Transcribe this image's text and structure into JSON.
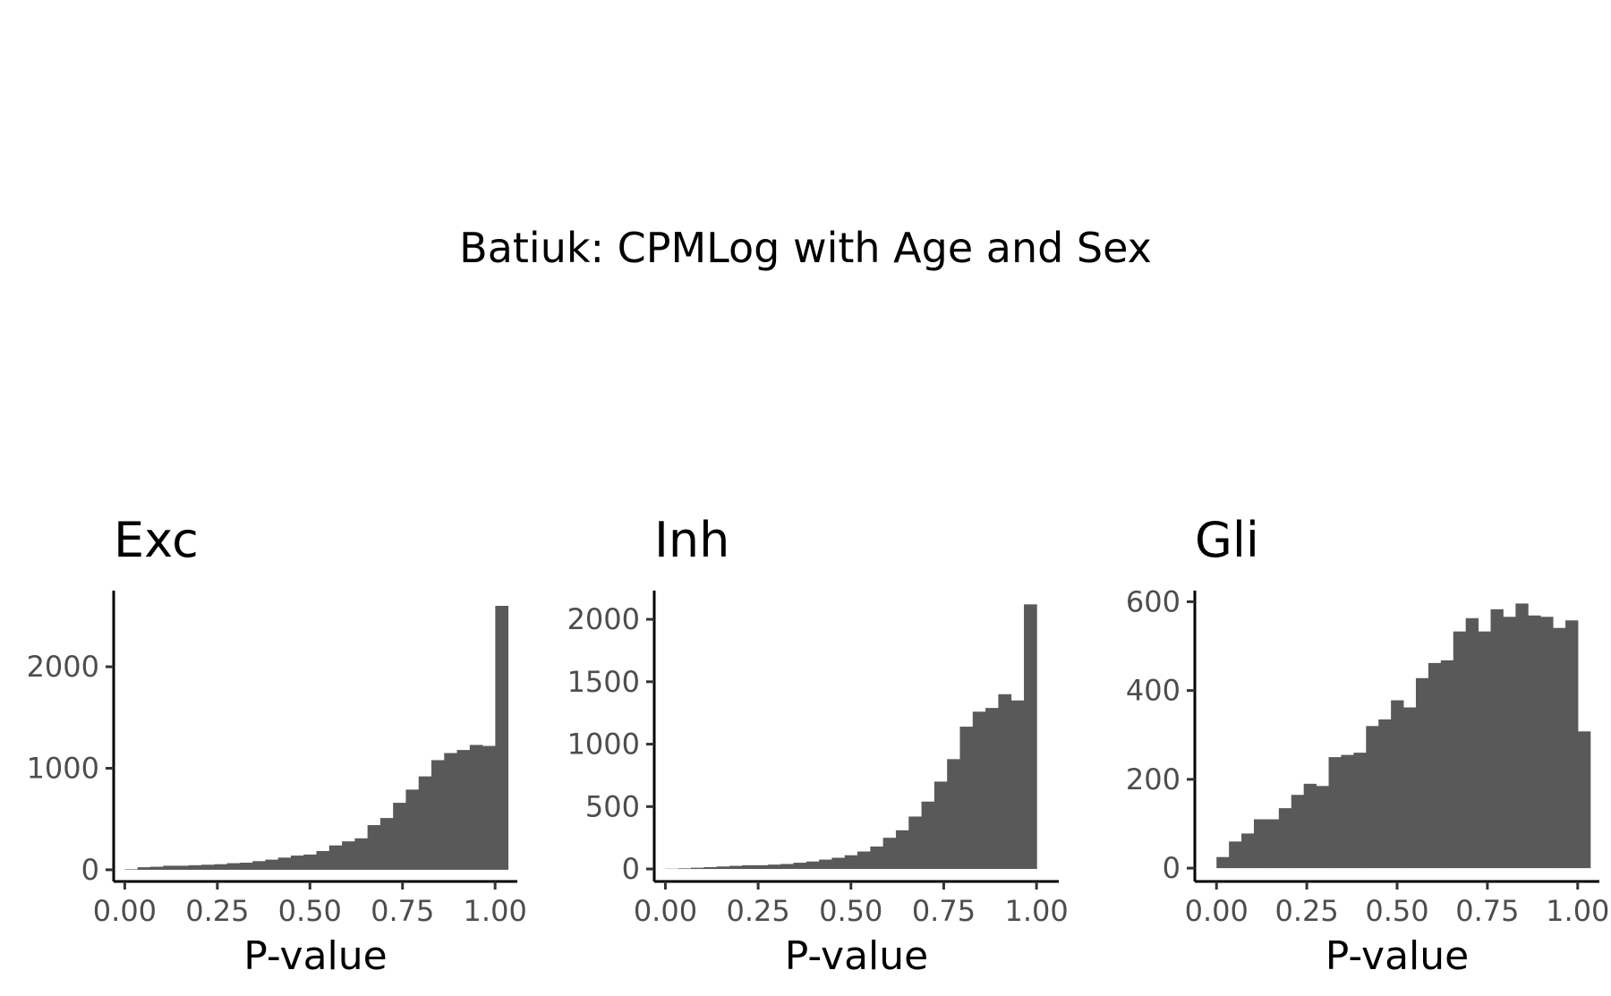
{
  "title": "Batiuk: CPMLog with Age and Sex",
  "chart_data": [
    {
      "type": "bar",
      "panel": "Exc",
      "title": "Exc",
      "xlabel": "P-value",
      "ylabel": "",
      "xlim": [
        -0.03,
        1.06
      ],
      "ylim": [
        -115,
        2750
      ],
      "xticks": [
        "0.00",
        "0.25",
        "0.50",
        "0.75",
        "1.00"
      ],
      "yticks": [
        "0",
        "1000",
        "2000"
      ],
      "bin_width": 0.0345,
      "values": [
        5,
        25,
        30,
        40,
        40,
        45,
        50,
        55,
        65,
        70,
        85,
        100,
        120,
        140,
        150,
        185,
        240,
        280,
        310,
        440,
        510,
        660,
        790,
        920,
        1080,
        1150,
        1180,
        1230,
        1220,
        2600
      ]
    },
    {
      "type": "bar",
      "panel": "Inh",
      "title": "Inh",
      "xlabel": "P-value",
      "ylabel": "",
      "xlim": [
        -0.03,
        1.06
      ],
      "ylim": [
        -100,
        2230
      ],
      "xticks": [
        "0.00",
        "0.25",
        "0.50",
        "0.75",
        "1.00"
      ],
      "yticks": [
        "0",
        "500",
        "1000",
        "1500",
        "2000"
      ],
      "bin_width": 0.0345,
      "values": [
        2,
        5,
        10,
        15,
        20,
        25,
        30,
        30,
        35,
        40,
        50,
        60,
        75,
        90,
        110,
        140,
        180,
        250,
        310,
        420,
        540,
        700,
        880,
        1140,
        1260,
        1290,
        1400,
        1350,
        2120
      ]
    },
    {
      "type": "bar",
      "panel": "Gli",
      "title": "Gli",
      "xlabel": "P-value",
      "ylabel": "",
      "xlim": [
        -0.06,
        1.06
      ],
      "ylim": [
        -30,
        625
      ],
      "xticks": [
        "0.00",
        "0.25",
        "0.50",
        "0.75",
        "1.00"
      ],
      "yticks": [
        "0",
        "200",
        "400",
        "600"
      ],
      "bin_width": 0.0345,
      "values": [
        25,
        60,
        78,
        110,
        110,
        135,
        165,
        190,
        185,
        250,
        255,
        260,
        320,
        335,
        378,
        362,
        428,
        462,
        468,
        533,
        563,
        533,
        583,
        566,
        596,
        569,
        566,
        541,
        558,
        308
      ]
    }
  ]
}
